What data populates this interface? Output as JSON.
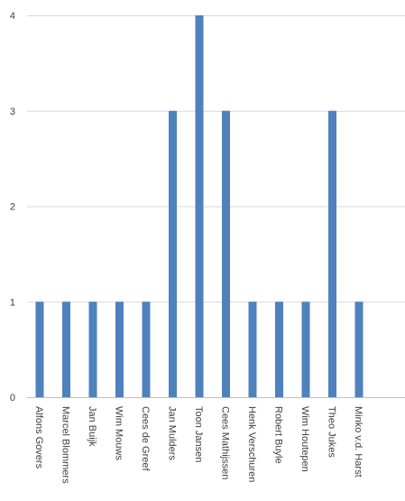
{
  "chart_data": {
    "type": "bar",
    "categories": [
      "Alfons Govers",
      "Marcel Blommers",
      "Jan Buijk",
      "Wim Mouws",
      "Cees de Greef",
      "Jan Mulders",
      "Toon Jansen",
      "Cees Mathijssen",
      "Henk Verschuren",
      "Robert Buyle",
      "Wim Houtepen",
      "Theo Jukes",
      "Minko v.d. Harst"
    ],
    "values": [
      1,
      1,
      1,
      1,
      1,
      3,
      4,
      3,
      1,
      1,
      1,
      3,
      1
    ],
    "yticks": [
      "0",
      "1",
      "2",
      "3",
      "4"
    ],
    "ylim": [
      0,
      4
    ],
    "grid": true,
    "legend": "none",
    "bar_color": "#4f81bd"
  }
}
